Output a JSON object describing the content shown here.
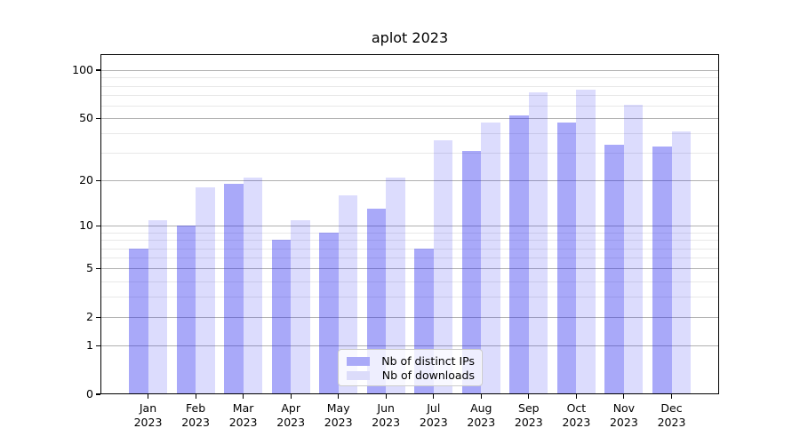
{
  "title": "aplot 2023",
  "chart_data": {
    "type": "bar",
    "title": "aplot 2023",
    "xlabel": "",
    "ylabel": "",
    "y_scale": "log1p (symlog-like: position = log10(1+value))",
    "grid": true,
    "legend_position": "lower center",
    "year": "2023",
    "categories": [
      "Jan",
      "Feb",
      "Mar",
      "Apr",
      "May",
      "Jun",
      "Jul",
      "Aug",
      "Sep",
      "Oct",
      "Nov",
      "Dec"
    ],
    "series": [
      {
        "name": "Nb of distinct IPs",
        "color": "rgba(40,40,240,0.40)",
        "swatch_hex": "#aaaaf8",
        "values": [
          7,
          10,
          19,
          8,
          9,
          13,
          7,
          31,
          52,
          47,
          34,
          33
        ]
      },
      {
        "name": "Nb of downloads",
        "color": "rgba(40,40,240,0.165)",
        "swatch_hex": "#dcdcfa",
        "values": [
          11,
          18,
          21,
          11,
          16,
          21,
          36,
          47,
          73,
          76,
          61,
          41
        ]
      }
    ],
    "y_major_ticks": [
      100,
      50,
      20,
      10,
      5,
      2,
      1,
      0
    ],
    "y_minor_gridlines": [
      3,
      4,
      6,
      7,
      8,
      9,
      30,
      40,
      60,
      70,
      80,
      90
    ],
    "ylim": [
      0,
      127
    ]
  },
  "colors": {
    "background": "#ffffff",
    "grid_major": "#b0b0b0",
    "grid_minor": "#e8e8e8",
    "axis": "#000000",
    "legend_border": "#cccccc"
  }
}
